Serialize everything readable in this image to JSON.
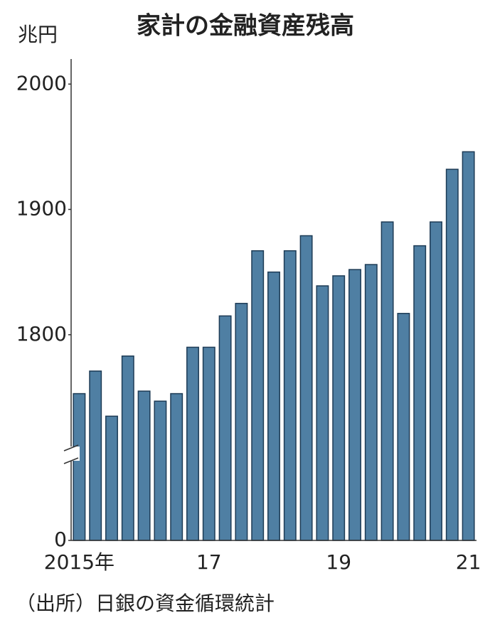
{
  "chart_data": {
    "type": "bar",
    "title": "家計の金融資産残高",
    "y_unit": "兆円",
    "source": "（出所）日銀の資金循環統計",
    "categories": [
      "2015年",
      null,
      null,
      null,
      null,
      null,
      null,
      null,
      "17",
      null,
      null,
      null,
      null,
      null,
      null,
      null,
      "19",
      null,
      null,
      null,
      null,
      null,
      null,
      null,
      "21"
    ],
    "values": [
      1753,
      1771,
      1735,
      1783,
      1755,
      1747,
      1753,
      1790,
      1790,
      1815,
      1825,
      1867,
      1850,
      1867,
      1879,
      1839,
      1847,
      1852,
      1856,
      1890,
      1817,
      1871,
      1890,
      1932,
      1946
    ],
    "color": "#4f7fa3",
    "ylim": [
      0,
      2020
    ],
    "yticks": [
      0,
      1800,
      1900,
      2000
    ],
    "ybreak": 1700,
    "grid": false
  }
}
